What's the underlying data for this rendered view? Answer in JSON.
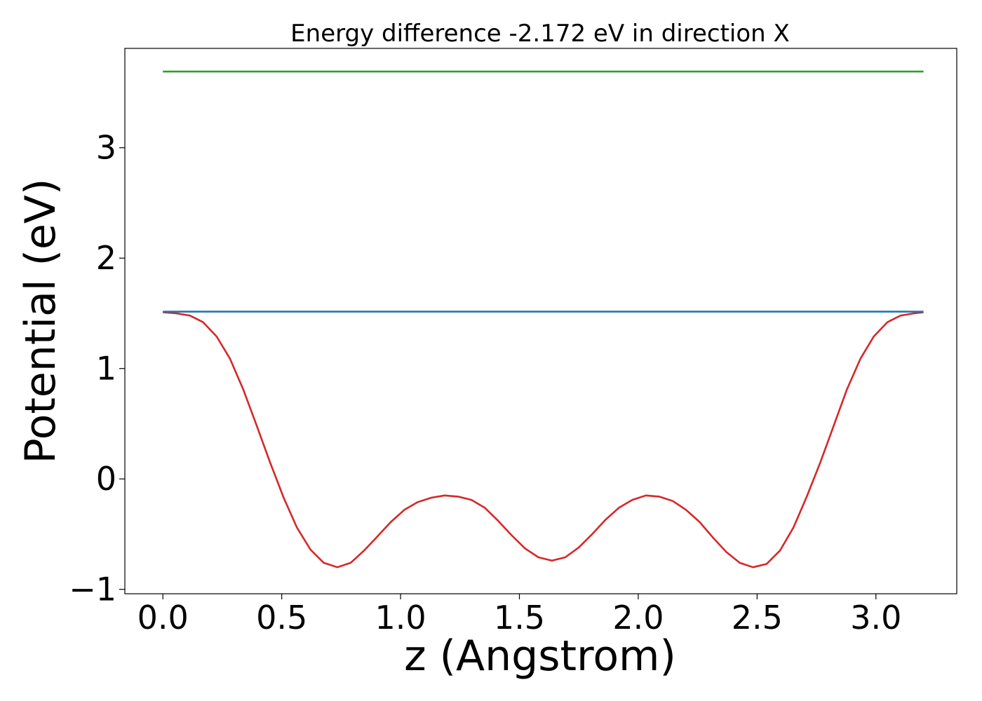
{
  "chart_data": {
    "type": "line",
    "title": "Energy difference -2.172 eV in direction X",
    "xlabel": "z (Angstrom)",
    "ylabel": "Potential (eV)",
    "xlim": [
      -0.16,
      3.34
    ],
    "ylim": [
      -1.04,
      3.9
    ],
    "x_ticks": [
      0.0,
      0.5,
      1.0,
      1.5,
      2.0,
      2.5,
      3.0
    ],
    "x_tick_labels": [
      "0.0",
      "0.5",
      "1.0",
      "1.5",
      "2.0",
      "2.5",
      "3.0"
    ],
    "y_ticks": [
      -1,
      0,
      1,
      2,
      3
    ],
    "y_tick_labels": [
      "−1",
      "0",
      "1",
      "2",
      "3"
    ],
    "grid": false,
    "series": [
      {
        "color": "#d62728",
        "x": [
          0.0,
          0.056,
          0.113,
          0.169,
          0.226,
          0.282,
          0.338,
          0.395,
          0.451,
          0.508,
          0.564,
          0.621,
          0.677,
          0.734,
          0.79,
          0.846,
          0.903,
          0.959,
          1.016,
          1.072,
          1.129,
          1.185,
          1.242,
          1.298,
          1.354,
          1.411,
          1.467,
          1.524,
          1.58,
          1.637,
          1.693,
          1.75,
          1.806,
          1.862,
          1.919,
          1.975,
          2.032,
          2.088,
          2.145,
          2.201,
          2.258,
          2.314,
          2.37,
          2.427,
          2.483,
          2.54,
          2.596,
          2.653,
          2.709,
          2.766,
          2.822,
          2.878,
          2.935,
          2.991,
          3.048,
          3.104,
          3.161,
          3.2
        ],
        "y": [
          1.51,
          1.5,
          1.48,
          1.42,
          1.29,
          1.09,
          0.81,
          0.48,
          0.15,
          -0.17,
          -0.44,
          -0.64,
          -0.76,
          -0.8,
          -0.76,
          -0.65,
          -0.52,
          -0.39,
          -0.28,
          -0.21,
          -0.17,
          -0.15,
          -0.16,
          -0.19,
          -0.26,
          -0.38,
          -0.51,
          -0.63,
          -0.71,
          -0.74,
          -0.71,
          -0.62,
          -0.5,
          -0.37,
          -0.26,
          -0.19,
          -0.15,
          -0.16,
          -0.2,
          -0.28,
          -0.39,
          -0.53,
          -0.66,
          -0.76,
          -0.8,
          -0.77,
          -0.65,
          -0.44,
          -0.16,
          0.15,
          0.48,
          0.81,
          1.09,
          1.29,
          1.42,
          1.48,
          1.5,
          1.51
        ]
      },
      {
        "color": "#1f77b4",
        "x": [
          0.0,
          3.2
        ],
        "y": [
          1.515,
          1.515
        ]
      },
      {
        "color": "#2ca02c",
        "x": [
          0.0,
          3.2
        ],
        "y": [
          3.69,
          3.69
        ]
      }
    ]
  }
}
